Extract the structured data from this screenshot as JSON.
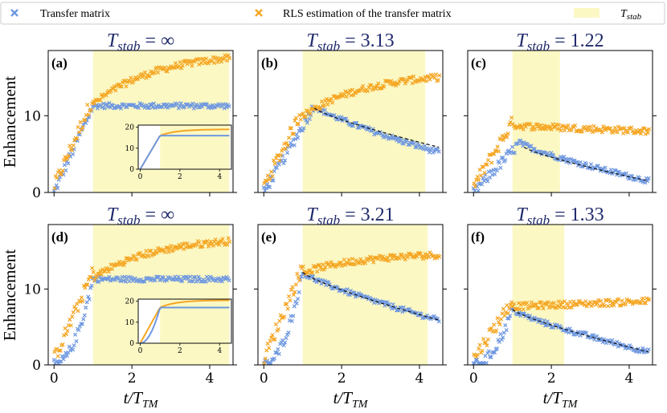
{
  "chart_data": {
    "type": "scatter",
    "legend": {
      "placement": "top",
      "entries": [
        {
          "name": "Transfer matrix",
          "marker": "x",
          "color": "#6f98e0"
        },
        {
          "name": "RLS estimation of the transfer matrix",
          "marker": "x",
          "color": "#f5a623"
        },
        {
          "name": "T_stab",
          "marker": "patch",
          "color": "#fbf8c4"
        }
      ]
    },
    "xlabel": "t/T_TM",
    "ylabel": "Enhancement",
    "xlim": [
      -0.15,
      4.6
    ],
    "ylim": [
      0,
      18.5
    ],
    "xticks": [
      0,
      2,
      4
    ],
    "yticks": [
      0,
      10
    ],
    "colors": {
      "transfer": "#6f98e0",
      "rls": "#f5a623",
      "shade": "#fbf8c4",
      "title": "#1f2a6b",
      "fit": "#111111"
    },
    "panels": [
      {
        "label": "(a)",
        "title": "T_stab = ∞",
        "shade": [
          1.0,
          4.5
        ],
        "transfer": {
          "model": "plateau",
          "t0": 1.0,
          "peak": 11.3,
          "final": 11.3,
          "rise": "linear"
        },
        "rls": {
          "model": "growth",
          "t0": 1.0,
          "peak": 11.5,
          "final": 17.5
        },
        "fit": null,
        "inset": {
          "xlim": [
            -0.1,
            4.6
          ],
          "ylim": [
            0,
            21
          ],
          "xticks": [
            0,
            2,
            4
          ],
          "yticks": [
            0,
            10,
            20
          ],
          "transfer_level": 16,
          "rls_final": 19
        }
      },
      {
        "label": "(b)",
        "title": "T_stab = 3.13",
        "shade": [
          1.0,
          4.15
        ],
        "transfer": {
          "model": "decay",
          "t0": 1.3,
          "peak": 11.3,
          "final": 5.2,
          "rise": "linear"
        },
        "rls": {
          "model": "growth",
          "t0": 1.0,
          "peak": 10.0,
          "final": 15.0
        },
        "fit": {
          "from": 1.3,
          "to": 4.5,
          "start": 11.0,
          "end": 5.9
        }
      },
      {
        "label": "(c)",
        "title": "T_stab = 1.22",
        "shade": [
          1.0,
          2.22
        ],
        "transfer": {
          "model": "decay",
          "t0": 1.2,
          "peak": 6.5,
          "final": 1.5,
          "rise": "linear"
        },
        "rls": {
          "model": "flat",
          "t0": 1.05,
          "peak": 8.7,
          "final": 8.0
        },
        "fit": {
          "from": 1.3,
          "to": 4.5,
          "start": 5.9,
          "end": 1.5
        }
      },
      {
        "label": "(d)",
        "title": "T_stab = ∞",
        "shade": [
          1.0,
          4.5
        ],
        "transfer": {
          "model": "plateau",
          "t0": 1.0,
          "peak": 11.3,
          "final": 11.3,
          "rise": "quadratic"
        },
        "rls": {
          "model": "growth",
          "t0": 1.0,
          "peak": 11.5,
          "final": 16.3
        },
        "fit": null,
        "inset": {
          "xlim": [
            -0.1,
            4.6
          ],
          "ylim": [
            0,
            21
          ],
          "xticks": [
            0,
            2,
            4
          ],
          "yticks": [
            0,
            10,
            20
          ],
          "transfer_level": 17,
          "rls_final": 20.5
        }
      },
      {
        "label": "(e)",
        "title": "T_stab = 3.21",
        "shade": [
          1.0,
          4.21
        ],
        "transfer": {
          "model": "decay",
          "t0": 1.0,
          "peak": 12.2,
          "final": 5.9,
          "rise": "quadratic"
        },
        "rls": {
          "model": "growth",
          "t0": 1.0,
          "peak": 12.2,
          "final": 14.5
        },
        "fit": {
          "from": 1.0,
          "to": 4.5,
          "start": 12.2,
          "end": 5.9
        }
      },
      {
        "label": "(f)",
        "title": "T_stab = 1.33",
        "shade": [
          1.0,
          2.33
        ],
        "transfer": {
          "model": "decay",
          "t0": 1.0,
          "peak": 7.3,
          "final": 1.7,
          "rise": "quadratic"
        },
        "rls": {
          "model": "flat",
          "t0": 1.0,
          "peak": 7.7,
          "final": 8.4
        },
        "fit": {
          "from": 1.0,
          "to": 4.5,
          "start": 7.3,
          "end": 1.7
        }
      }
    ]
  }
}
